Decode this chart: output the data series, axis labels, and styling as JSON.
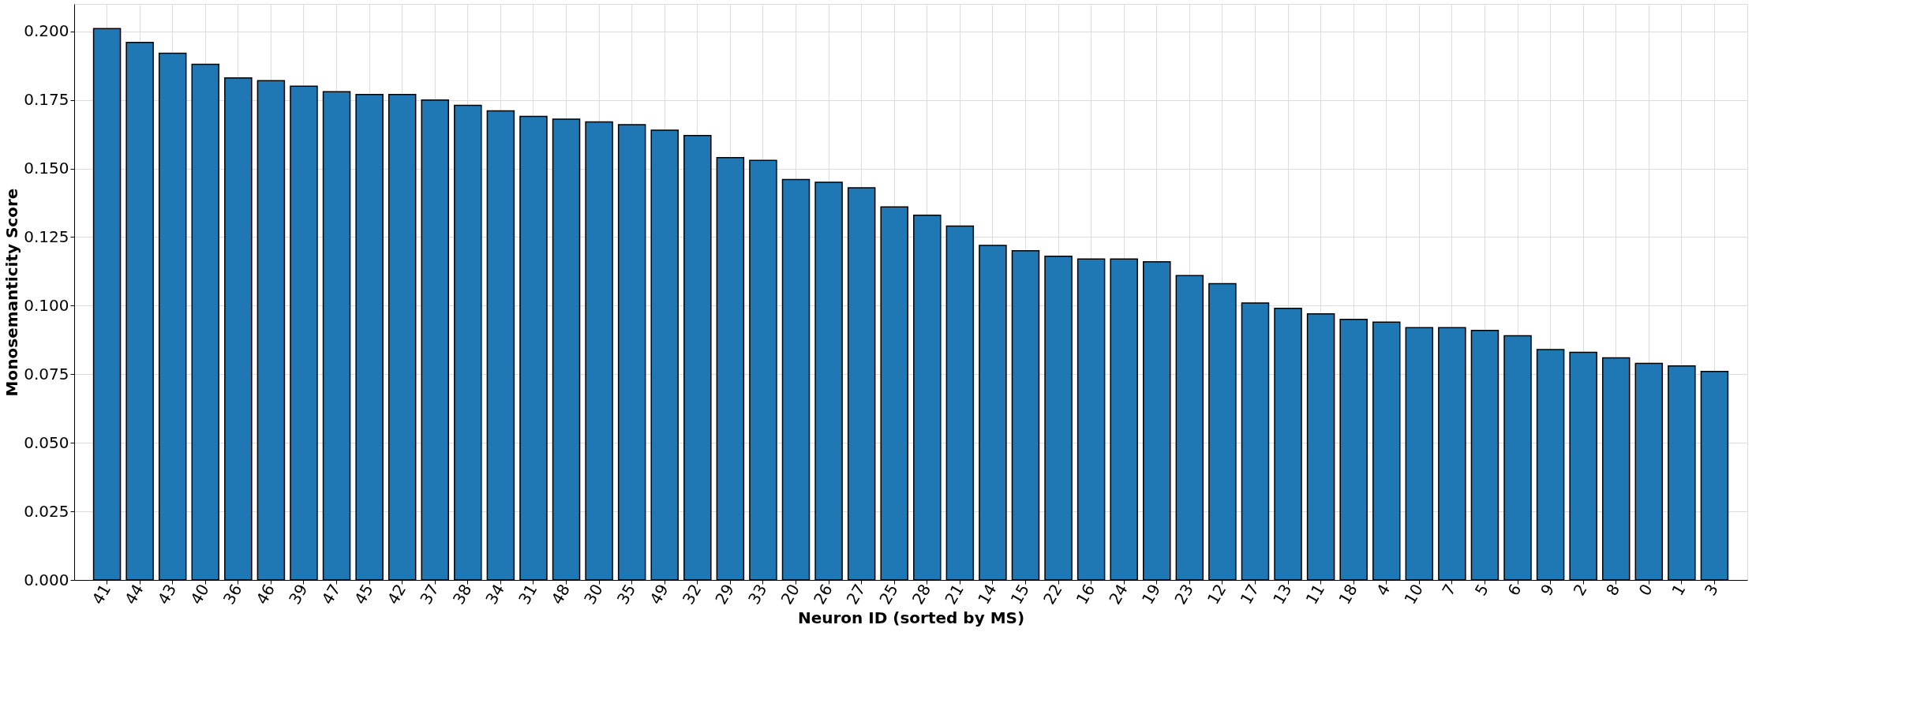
{
  "chart_data": {
    "type": "bar",
    "xlabel": "Neuron ID (sorted by MS)",
    "ylabel": "Monosemanticity Score",
    "categories": [
      "41",
      "44",
      "43",
      "40",
      "36",
      "46",
      "39",
      "47",
      "45",
      "42",
      "37",
      "38",
      "34",
      "31",
      "48",
      "30",
      "35",
      "49",
      "32",
      "29",
      "33",
      "20",
      "26",
      "27",
      "25",
      "28",
      "21",
      "14",
      "15",
      "22",
      "16",
      "24",
      "19",
      "23",
      "12",
      "17",
      "13",
      "11",
      "18",
      "4",
      "10",
      "7",
      "5",
      "6",
      "9",
      "2",
      "8",
      "0",
      "1",
      "3"
    ],
    "values": [
      0.201,
      0.196,
      0.192,
      0.188,
      0.183,
      0.182,
      0.18,
      0.178,
      0.177,
      0.177,
      0.175,
      0.173,
      0.171,
      0.169,
      0.168,
      0.167,
      0.166,
      0.164,
      0.162,
      0.154,
      0.153,
      0.146,
      0.145,
      0.143,
      0.136,
      0.133,
      0.129,
      0.122,
      0.12,
      0.118,
      0.117,
      0.117,
      0.116,
      0.111,
      0.108,
      0.101,
      0.099,
      0.097,
      0.095,
      0.094,
      0.092,
      0.092,
      0.091,
      0.089,
      0.084,
      0.083,
      0.081,
      0.079,
      0.078,
      0.076
    ],
    "color": "#1f77b4",
    "ylim": [
      0,
      0.21
    ],
    "yticks": [
      {
        "value": 0,
        "label": "0.000"
      },
      {
        "value": 0.025,
        "label": "0.025"
      },
      {
        "value": 0.05,
        "label": "0.050"
      },
      {
        "value": 0.075,
        "label": "0.075"
      },
      {
        "value": 0.1,
        "label": "0.100"
      },
      {
        "value": 0.125,
        "label": "0.125"
      },
      {
        "value": 0.15,
        "label": "0.150"
      },
      {
        "value": 0.175,
        "label": "0.175"
      },
      {
        "value": 0.2,
        "label": "0.200"
      }
    ],
    "grid": true
  }
}
